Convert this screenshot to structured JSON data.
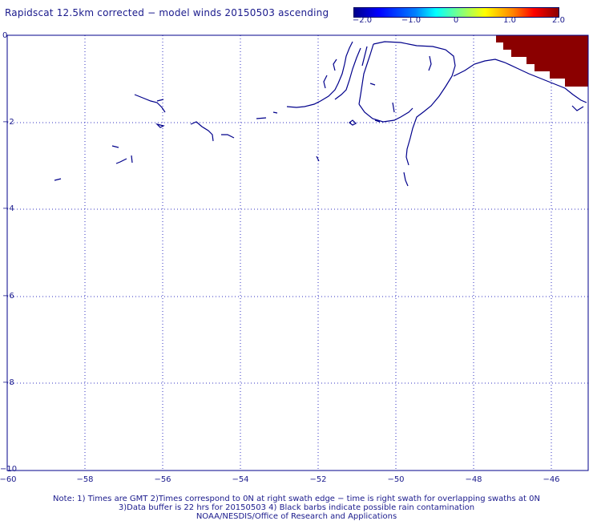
{
  "title": "Rapidscat 12.5km corrected − model winds 20150503 ascending",
  "colorbar": {
    "labels": [
      "−2.0",
      "−1.0",
      "0",
      "1.0",
      "2.0"
    ],
    "min": -2.0,
    "max": 2.0,
    "colors": [
      "#00008b",
      "#0000ff",
      "#0080ff",
      "#00ffff",
      "#80ff80",
      "#ffff00",
      "#ff8000",
      "#ff0000",
      "#8b0000"
    ]
  },
  "map": {
    "lon_range": [
      -60,
      -45
    ],
    "lat_range": [
      -10,
      0
    ],
    "x_ticks": [
      "−60",
      "−58",
      "−56",
      "−54",
      "−52",
      "−50",
      "−48",
      "−46"
    ],
    "y_ticks": [
      "0",
      "−2",
      "−4",
      "−6",
      "−8",
      "−10"
    ],
    "grid": "dotted",
    "coastline_color": "#00008b",
    "swath_color": "#8b0000"
  },
  "notes": {
    "line1": "Note: 1) Times are GMT 2)Times correspond to 0N at right swath edge − time is right swath for overlapping swaths at 0N",
    "line2": "3)Data buffer is 22 hrs for 20150503 4) Black barbs indicate possible rain contamination",
    "line3": "NOAA/NESDIS/Office of Research and Applications"
  }
}
